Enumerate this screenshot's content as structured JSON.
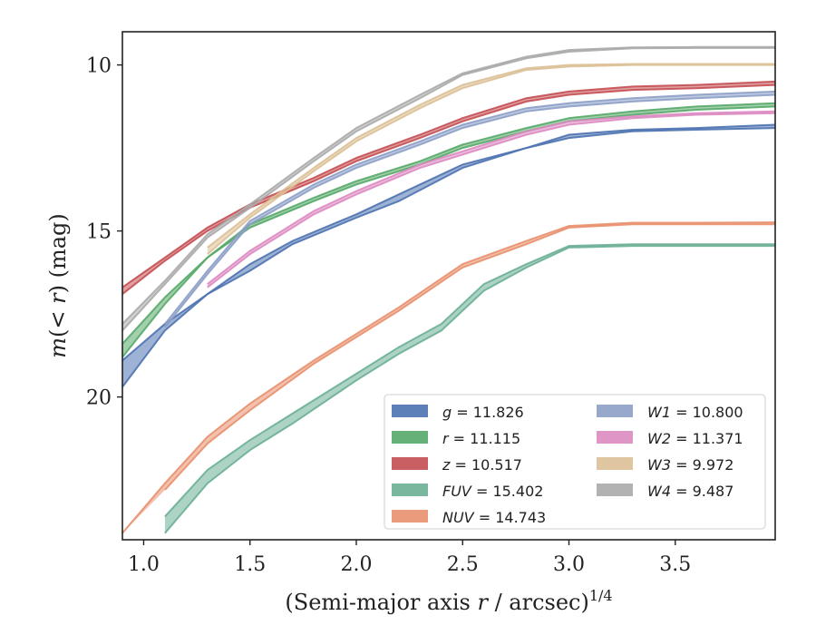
{
  "chart_data": {
    "type": "area",
    "xlabel_main": "(Semi-major axis ",
    "xlabel_var": "r",
    "xlabel_rest": " / arcsec)",
    "xlabel_sup": "1/4",
    "ylabel_main": "m(",
    "ylabel_mid": "< r",
    "ylabel_rest": ") (mag)",
    "xlim": [
      0.9,
      3.97
    ],
    "ylim": [
      24.3,
      9.0
    ],
    "y_inverted": true,
    "xticks": [
      1.0,
      1.5,
      2.0,
      2.5,
      3.0,
      3.5
    ],
    "xtick_labels": [
      "1.0",
      "1.5",
      "2.0",
      "2.5",
      "3.0",
      "3.5"
    ],
    "yticks": [
      10,
      15,
      20
    ],
    "ytick_labels": [
      "10",
      "15",
      "20"
    ],
    "grid": false,
    "legend_position": "lower-right",
    "series": [
      {
        "name": "g",
        "value": "11.826",
        "color": "#4c72b0",
        "upper": [
          [
            0.9,
            19.7
          ],
          [
            1.1,
            18.0
          ],
          [
            1.3,
            16.9
          ],
          [
            1.5,
            16.0
          ],
          [
            1.7,
            15.3
          ],
          [
            2.0,
            14.5
          ],
          [
            2.2,
            13.9
          ],
          [
            2.5,
            13.0
          ],
          [
            2.8,
            12.5
          ],
          [
            3.0,
            12.1
          ],
          [
            3.3,
            11.95
          ],
          [
            3.6,
            11.9
          ],
          [
            3.97,
            11.8
          ]
        ],
        "lower": [
          [
            0.9,
            18.9
          ],
          [
            1.1,
            17.8
          ],
          [
            1.3,
            16.9
          ],
          [
            1.5,
            16.2
          ],
          [
            1.7,
            15.4
          ],
          [
            2.0,
            14.6
          ],
          [
            2.2,
            14.1
          ],
          [
            2.5,
            13.1
          ],
          [
            2.8,
            12.5
          ],
          [
            3.0,
            12.2
          ],
          [
            3.3,
            12.0
          ],
          [
            3.6,
            11.95
          ],
          [
            3.97,
            11.9
          ]
        ]
      },
      {
        "name": "r",
        "value": "11.115",
        "color": "#55a868",
        "upper": [
          [
            0.9,
            18.8
          ],
          [
            1.1,
            17.2
          ],
          [
            1.3,
            15.8
          ],
          [
            1.5,
            14.8
          ],
          [
            1.8,
            14.0
          ],
          [
            2.0,
            13.5
          ],
          [
            2.3,
            12.9
          ],
          [
            2.5,
            12.4
          ],
          [
            2.8,
            11.9
          ],
          [
            3.0,
            11.6
          ],
          [
            3.3,
            11.4
          ],
          [
            3.6,
            11.25
          ],
          [
            3.97,
            11.15
          ]
        ],
        "lower": [
          [
            0.9,
            18.4
          ],
          [
            1.1,
            17.0
          ],
          [
            1.3,
            15.8
          ],
          [
            1.5,
            14.9
          ],
          [
            1.8,
            14.1
          ],
          [
            2.0,
            13.6
          ],
          [
            2.3,
            13.0
          ],
          [
            2.5,
            12.5
          ],
          [
            2.8,
            12.0
          ],
          [
            3.0,
            11.7
          ],
          [
            3.3,
            11.5
          ],
          [
            3.6,
            11.35
          ],
          [
            3.97,
            11.25
          ]
        ]
      },
      {
        "name": "z",
        "value": "10.517",
        "color": "#c44e52",
        "upper": [
          [
            0.9,
            16.7
          ],
          [
            1.1,
            15.8
          ],
          [
            1.3,
            14.9
          ],
          [
            1.5,
            14.2
          ],
          [
            1.8,
            13.4
          ],
          [
            2.0,
            12.8
          ],
          [
            2.3,
            12.1
          ],
          [
            2.5,
            11.6
          ],
          [
            2.8,
            11.0
          ],
          [
            3.0,
            10.8
          ],
          [
            3.3,
            10.65
          ],
          [
            3.6,
            10.6
          ],
          [
            3.97,
            10.5
          ]
        ],
        "lower": [
          [
            0.9,
            16.9
          ],
          [
            1.1,
            15.9
          ],
          [
            1.3,
            15.0
          ],
          [
            1.5,
            14.3
          ],
          [
            1.8,
            13.5
          ],
          [
            2.0,
            12.9
          ],
          [
            2.3,
            12.2
          ],
          [
            2.5,
            11.7
          ],
          [
            2.8,
            11.1
          ],
          [
            3.0,
            10.9
          ],
          [
            3.3,
            10.75
          ],
          [
            3.6,
            10.7
          ],
          [
            3.97,
            10.6
          ]
        ]
      },
      {
        "name": "FUV",
        "value": "15.402",
        "color": "#6aaf95",
        "upper": [
          [
            1.1,
            23.6
          ],
          [
            1.3,
            22.2
          ],
          [
            1.5,
            21.3
          ],
          [
            1.7,
            20.5
          ],
          [
            2.0,
            19.3
          ],
          [
            2.2,
            18.5
          ],
          [
            2.4,
            17.8
          ],
          [
            2.6,
            16.6
          ],
          [
            2.8,
            16.0
          ],
          [
            3.0,
            15.45
          ],
          [
            3.3,
            15.4
          ],
          [
            3.6,
            15.4
          ],
          [
            3.97,
            15.4
          ]
        ],
        "lower": [
          [
            1.1,
            24.1
          ],
          [
            1.3,
            22.6
          ],
          [
            1.5,
            21.6
          ],
          [
            1.7,
            20.8
          ],
          [
            2.0,
            19.5
          ],
          [
            2.2,
            18.7
          ],
          [
            2.4,
            18.0
          ],
          [
            2.6,
            16.8
          ],
          [
            2.8,
            16.1
          ],
          [
            3.0,
            15.5
          ],
          [
            3.3,
            15.45
          ],
          [
            3.6,
            15.45
          ],
          [
            3.97,
            15.45
          ]
        ]
      },
      {
        "name": "NUV",
        "value": "14.743",
        "color": "#e8906d",
        "upper": [
          [
            0.9,
            24.1
          ],
          [
            1.1,
            22.6
          ],
          [
            1.3,
            21.2
          ],
          [
            1.5,
            20.2
          ],
          [
            1.8,
            18.9
          ],
          [
            2.0,
            18.1
          ],
          [
            2.2,
            17.3
          ],
          [
            2.5,
            16.0
          ],
          [
            2.8,
            15.3
          ],
          [
            3.0,
            14.85
          ],
          [
            3.3,
            14.75
          ],
          [
            3.6,
            14.75
          ],
          [
            3.97,
            14.74
          ]
        ],
        "lower": [
          [
            1.1,
            22.8
          ],
          [
            1.3,
            21.4
          ],
          [
            1.5,
            20.4
          ],
          [
            1.8,
            19.0
          ],
          [
            2.0,
            18.2
          ],
          [
            2.2,
            17.4
          ],
          [
            2.5,
            16.1
          ],
          [
            2.8,
            15.4
          ],
          [
            3.0,
            14.9
          ],
          [
            3.3,
            14.8
          ],
          [
            3.6,
            14.8
          ],
          [
            3.97,
            14.8
          ]
        ]
      },
      {
        "name": "W1",
        "value": "10.800",
        "color": "#8c9fc7",
        "upper": [
          [
            1.1,
            17.8
          ],
          [
            1.3,
            16.2
          ],
          [
            1.5,
            14.7
          ],
          [
            1.8,
            13.6
          ],
          [
            2.0,
            13.0
          ],
          [
            2.3,
            12.3
          ],
          [
            2.5,
            11.8
          ],
          [
            2.8,
            11.3
          ],
          [
            3.0,
            11.15
          ],
          [
            3.3,
            11.0
          ],
          [
            3.6,
            10.9
          ],
          [
            3.97,
            10.8
          ]
        ],
        "lower": [
          [
            1.1,
            17.9
          ],
          [
            1.3,
            16.3
          ],
          [
            1.5,
            14.8
          ],
          [
            1.8,
            13.7
          ],
          [
            2.0,
            13.1
          ],
          [
            2.3,
            12.4
          ],
          [
            2.5,
            11.9
          ],
          [
            2.8,
            11.4
          ],
          [
            3.0,
            11.25
          ],
          [
            3.3,
            11.1
          ],
          [
            3.6,
            11.0
          ],
          [
            3.97,
            10.9
          ]
        ]
      },
      {
        "name": "W2",
        "value": "11.371",
        "color": "#dd8ac1",
        "upper": [
          [
            1.3,
            16.6
          ],
          [
            1.5,
            15.6
          ],
          [
            1.8,
            14.4
          ],
          [
            2.0,
            13.8
          ],
          [
            2.3,
            13.0
          ],
          [
            2.5,
            12.6
          ],
          [
            2.8,
            12.0
          ],
          [
            3.0,
            11.7
          ],
          [
            3.3,
            11.55
          ],
          [
            3.6,
            11.45
          ],
          [
            3.97,
            11.4
          ]
        ],
        "lower": [
          [
            1.3,
            16.7
          ],
          [
            1.5,
            15.7
          ],
          [
            1.8,
            14.5
          ],
          [
            2.0,
            13.9
          ],
          [
            2.3,
            13.1
          ],
          [
            2.5,
            12.7
          ],
          [
            2.8,
            12.1
          ],
          [
            3.0,
            11.8
          ],
          [
            3.3,
            11.6
          ],
          [
            3.6,
            11.5
          ],
          [
            3.97,
            11.45
          ]
        ]
      },
      {
        "name": "W3",
        "value": "9.972",
        "color": "#dcc096",
        "upper": [
          [
            1.3,
            15.5
          ],
          [
            1.5,
            14.5
          ],
          [
            1.8,
            13.1
          ],
          [
            2.0,
            12.2
          ],
          [
            2.3,
            11.2
          ],
          [
            2.5,
            10.6
          ],
          [
            2.8,
            10.1
          ],
          [
            3.0,
            10.0
          ],
          [
            3.3,
            9.97
          ],
          [
            3.6,
            9.97
          ],
          [
            3.97,
            9.97
          ]
        ],
        "lower": [
          [
            1.3,
            15.7
          ],
          [
            1.5,
            14.6
          ],
          [
            1.8,
            13.2
          ],
          [
            2.0,
            12.3
          ],
          [
            2.3,
            11.3
          ],
          [
            2.5,
            10.7
          ],
          [
            2.8,
            10.15
          ],
          [
            3.0,
            10.05
          ],
          [
            3.3,
            10.0
          ],
          [
            3.6,
            10.0
          ],
          [
            3.97,
            10.0
          ]
        ]
      },
      {
        "name": "W4",
        "value": "9.487",
        "color": "#aaaaaa",
        "upper": [
          [
            0.9,
            18.0
          ],
          [
            1.1,
            16.6
          ],
          [
            1.3,
            15.2
          ],
          [
            1.5,
            14.3
          ],
          [
            1.8,
            12.9
          ],
          [
            2.0,
            12.0
          ],
          [
            2.3,
            11.0
          ],
          [
            2.5,
            10.3
          ],
          [
            2.8,
            9.8
          ],
          [
            3.0,
            9.6
          ],
          [
            3.3,
            9.5
          ],
          [
            3.6,
            9.49
          ],
          [
            3.97,
            9.49
          ]
        ],
        "lower": [
          [
            0.9,
            17.8
          ],
          [
            1.1,
            16.5
          ],
          [
            1.3,
            15.1
          ],
          [
            1.5,
            14.2
          ],
          [
            1.8,
            12.8
          ],
          [
            2.0,
            11.9
          ],
          [
            2.3,
            10.9
          ],
          [
            2.5,
            10.25
          ],
          [
            2.8,
            9.75
          ],
          [
            3.0,
            9.55
          ],
          [
            3.3,
            9.47
          ],
          [
            3.6,
            9.46
          ],
          [
            3.97,
            9.46
          ]
        ]
      }
    ]
  }
}
